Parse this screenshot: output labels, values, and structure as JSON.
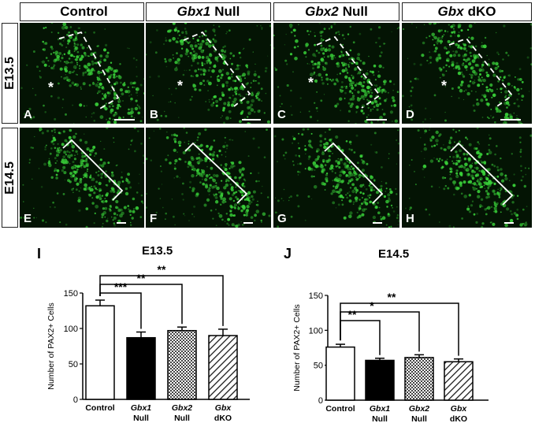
{
  "columns": [
    {
      "italic": "",
      "rest": "Control"
    },
    {
      "italic": "Gbx1",
      "rest": "Null"
    },
    {
      "italic": "Gbx2",
      "rest": "Null"
    },
    {
      "italic": "Gbx",
      "rest": "dKO"
    }
  ],
  "rows": [
    "E13.5",
    "E14.5"
  ],
  "panel_letters": [
    "A",
    "B",
    "C",
    "D",
    "E",
    "F",
    "G",
    "H"
  ],
  "asterisk": "*",
  "colors": {
    "fluorescence": "#39d039",
    "background": "#041404",
    "hatch": "#333333"
  },
  "chart_data": [
    {
      "type": "bar",
      "panel": "I",
      "title": "E13.5",
      "ylabel": "Number of PAX2+ Cells",
      "ylim": [
        0,
        150
      ],
      "yticks": [
        0,
        50,
        100,
        150
      ],
      "categories": [
        {
          "line1": "Control",
          "line2": "",
          "italic": false
        },
        {
          "line1": "Gbx1",
          "line2": "Null",
          "italic": true
        },
        {
          "line1": "Gbx2",
          "line2": "Null",
          "italic": true
        },
        {
          "line1": "Gbx",
          "line2": "dKO",
          "italic": true
        }
      ],
      "values": [
        132,
        87,
        97,
        90
      ],
      "errors": [
        8,
        8,
        5,
        9
      ],
      "fills": [
        "white",
        "black",
        "checker",
        "hatch"
      ],
      "significance": [
        {
          "from": 0,
          "to": 1,
          "label": "***"
        },
        {
          "from": 0,
          "to": 2,
          "label": "**"
        },
        {
          "from": 0,
          "to": 3,
          "label": "**"
        }
      ]
    },
    {
      "type": "bar",
      "panel": "J",
      "title": "E14.5",
      "ylabel": "Number of PAX2+ Cells",
      "ylim": [
        0,
        150
      ],
      "yticks": [
        0,
        50,
        100,
        150
      ],
      "categories": [
        {
          "line1": "Control",
          "line2": "",
          "italic": false
        },
        {
          "line1": "Gbx1",
          "line2": "Null",
          "italic": true
        },
        {
          "line1": "Gbx2",
          "line2": "Null",
          "italic": true
        },
        {
          "line1": "Gbx",
          "line2": "dKO",
          "italic": true
        }
      ],
      "values": [
        76,
        57,
        61,
        55
      ],
      "errors": [
        4,
        3,
        4,
        4
      ],
      "fills": [
        "white",
        "black",
        "checker",
        "hatch"
      ],
      "significance": [
        {
          "from": 0,
          "to": 1,
          "label": "**"
        },
        {
          "from": 0,
          "to": 2,
          "label": "*"
        },
        {
          "from": 0,
          "to": 3,
          "label": "**"
        }
      ]
    }
  ]
}
